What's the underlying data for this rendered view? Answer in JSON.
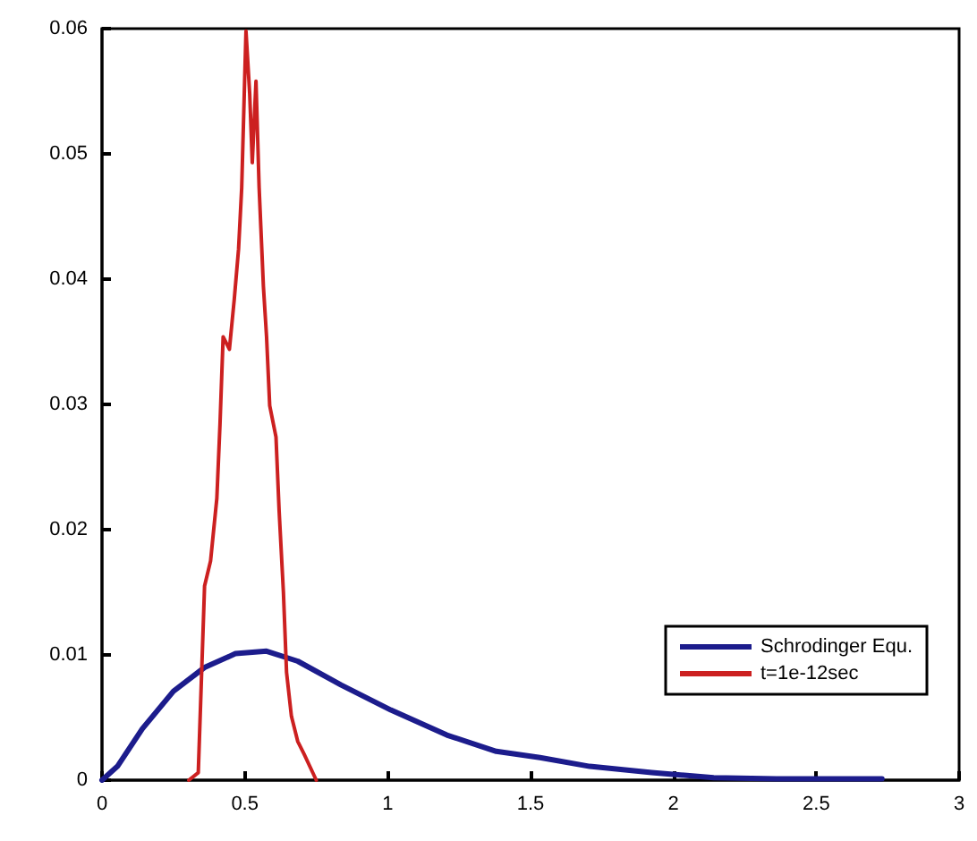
{
  "chart_data": {
    "type": "line",
    "xlim": [
      0,
      3
    ],
    "xticks": [
      0,
      0.5,
      1,
      1.5,
      2,
      2.5,
      3
    ],
    "ylim": [
      0,
      0.06
    ],
    "yticks": [
      0,
      0.01,
      0.02,
      0.03,
      0.04,
      0.05,
      0.06
    ],
    "grid": false,
    "legend": "bottom right",
    "marker": "none",
    "line_style": "solid",
    "series": [
      {
        "name": "Schrodinger Equ.",
        "color": "#1c1c8c",
        "x": [
          0,
          0.054,
          0.141,
          0.25,
          0.359,
          0.467,
          0.576,
          0.685,
          0.837,
          1.011,
          1.207,
          1.38,
          1.533,
          1.707,
          1.924,
          2.141,
          2.36,
          2.73
        ],
        "values": [
          0,
          0.0011,
          0.0041,
          0.0071,
          0.009,
          0.0101,
          0.0103,
          0.0095,
          0.0076,
          0.0056,
          0.0036,
          0.0023,
          0.0018,
          0.0011,
          0.0006,
          0.0002,
          0.0001,
          0.0001
        ]
      },
      {
        "name": "t=1e-12sec",
        "color": "#cc2020",
        "x": [
          0.304,
          0.337,
          0.359,
          0.38,
          0.402,
          0.413,
          0.424,
          0.446,
          0.463,
          0.478,
          0.489,
          0.504,
          0.517,
          0.526,
          0.539,
          0.55,
          0.565,
          0.576,
          0.587,
          0.609,
          0.62,
          0.635,
          0.646,
          0.663,
          0.685,
          0.707,
          0.75
        ],
        "values": [
          0,
          0.0006,
          0.0155,
          0.0175,
          0.0225,
          0.0284,
          0.0354,
          0.0344,
          0.0384,
          0.0424,
          0.0473,
          0.0598,
          0.0548,
          0.0493,
          0.0558,
          0.0473,
          0.0394,
          0.0354,
          0.0299,
          0.0274,
          0.0215,
          0.015,
          0.0086,
          0.0051,
          0.0031,
          0.0021,
          0
        ]
      }
    ]
  }
}
